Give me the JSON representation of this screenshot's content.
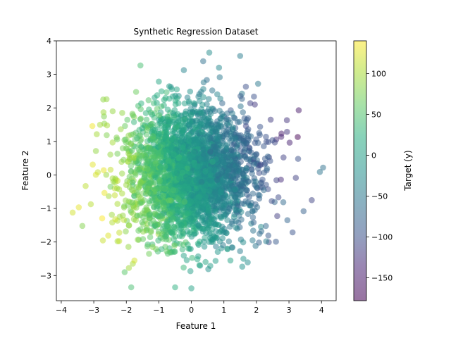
{
  "chart_data": {
    "type": "scatter",
    "title": "Synthetic Regression Dataset",
    "xlabel": "Feature 1",
    "ylabel": "Feature 2",
    "xlim": [
      -4.15,
      4.45
    ],
    "ylim": [
      -3.75,
      4.0
    ],
    "xticks": [
      -4,
      -3,
      -2,
      -1,
      0,
      1,
      2,
      3,
      4
    ],
    "yticks": [
      -3,
      -2,
      -1,
      0,
      1,
      2,
      3,
      4
    ],
    "grid": false,
    "point_alpha": 0.5,
    "colormap": "viridis",
    "colorbar": {
      "label": "Target (y)",
      "range": [
        -178,
        140
      ],
      "ticks": [
        -150,
        -100,
        -50,
        0,
        50,
        100
      ]
    },
    "n_points_approx": 3000,
    "distribution": {
      "center": [
        0.0,
        0.0
      ],
      "std": [
        1.0,
        1.0
      ],
      "target_relation": "y decreases with Feature 1 (≈ -40 per unit), slight decrease with Feature 2"
    },
    "outliers": [
      {
        "x": -3.65,
        "y": -1.12,
        "target": 120
      },
      {
        "x": -3.25,
        "y": -0.33,
        "target": 110
      },
      {
        "x": -3.35,
        "y": -1.52,
        "target": 80
      },
      {
        "x": -2.7,
        "y": 1.87,
        "target": 95
      },
      {
        "x": -1.75,
        "y": -2.55,
        "target": 120
      },
      {
        "x": -1.85,
        "y": -3.35,
        "target": 45
      },
      {
        "x": -2.05,
        "y": -2.9,
        "target": 55
      },
      {
        "x": 0.55,
        "y": 3.65,
        "target": -25
      },
      {
        "x": 1.5,
        "y": 3.55,
        "target": -45
      },
      {
        "x": 0.0,
        "y": -3.38,
        "target": 5
      },
      {
        "x": -0.5,
        "y": -3.35,
        "target": 25
      },
      {
        "x": 0.85,
        "y": 3.2,
        "target": -30
      },
      {
        "x": 3.3,
        "y": 1.93,
        "target": -150
      },
      {
        "x": 3.27,
        "y": 1.13,
        "target": -178
      },
      {
        "x": 3.28,
        "y": 0.48,
        "target": -100
      },
      {
        "x": 3.95,
        "y": 0.09,
        "target": -55
      },
      {
        "x": 4.05,
        "y": 0.22,
        "target": -60
      },
      {
        "x": 3.7,
        "y": -0.75,
        "target": -110
      },
      {
        "x": 3.45,
        "y": -1.08,
        "target": -80
      },
      {
        "x": 2.95,
        "y": -1.35,
        "target": -75
      },
      {
        "x": 2.3,
        "y": -1.98,
        "target": -40
      },
      {
        "x": 1.95,
        "y": 2.1,
        "target": -120
      },
      {
        "x": 2.05,
        "y": 2.72,
        "target": -50
      },
      {
        "x": 1.2,
        "y": -2.55,
        "target": 5
      },
      {
        "x": 1.6,
        "y": -2.5,
        "target": -15
      }
    ]
  }
}
